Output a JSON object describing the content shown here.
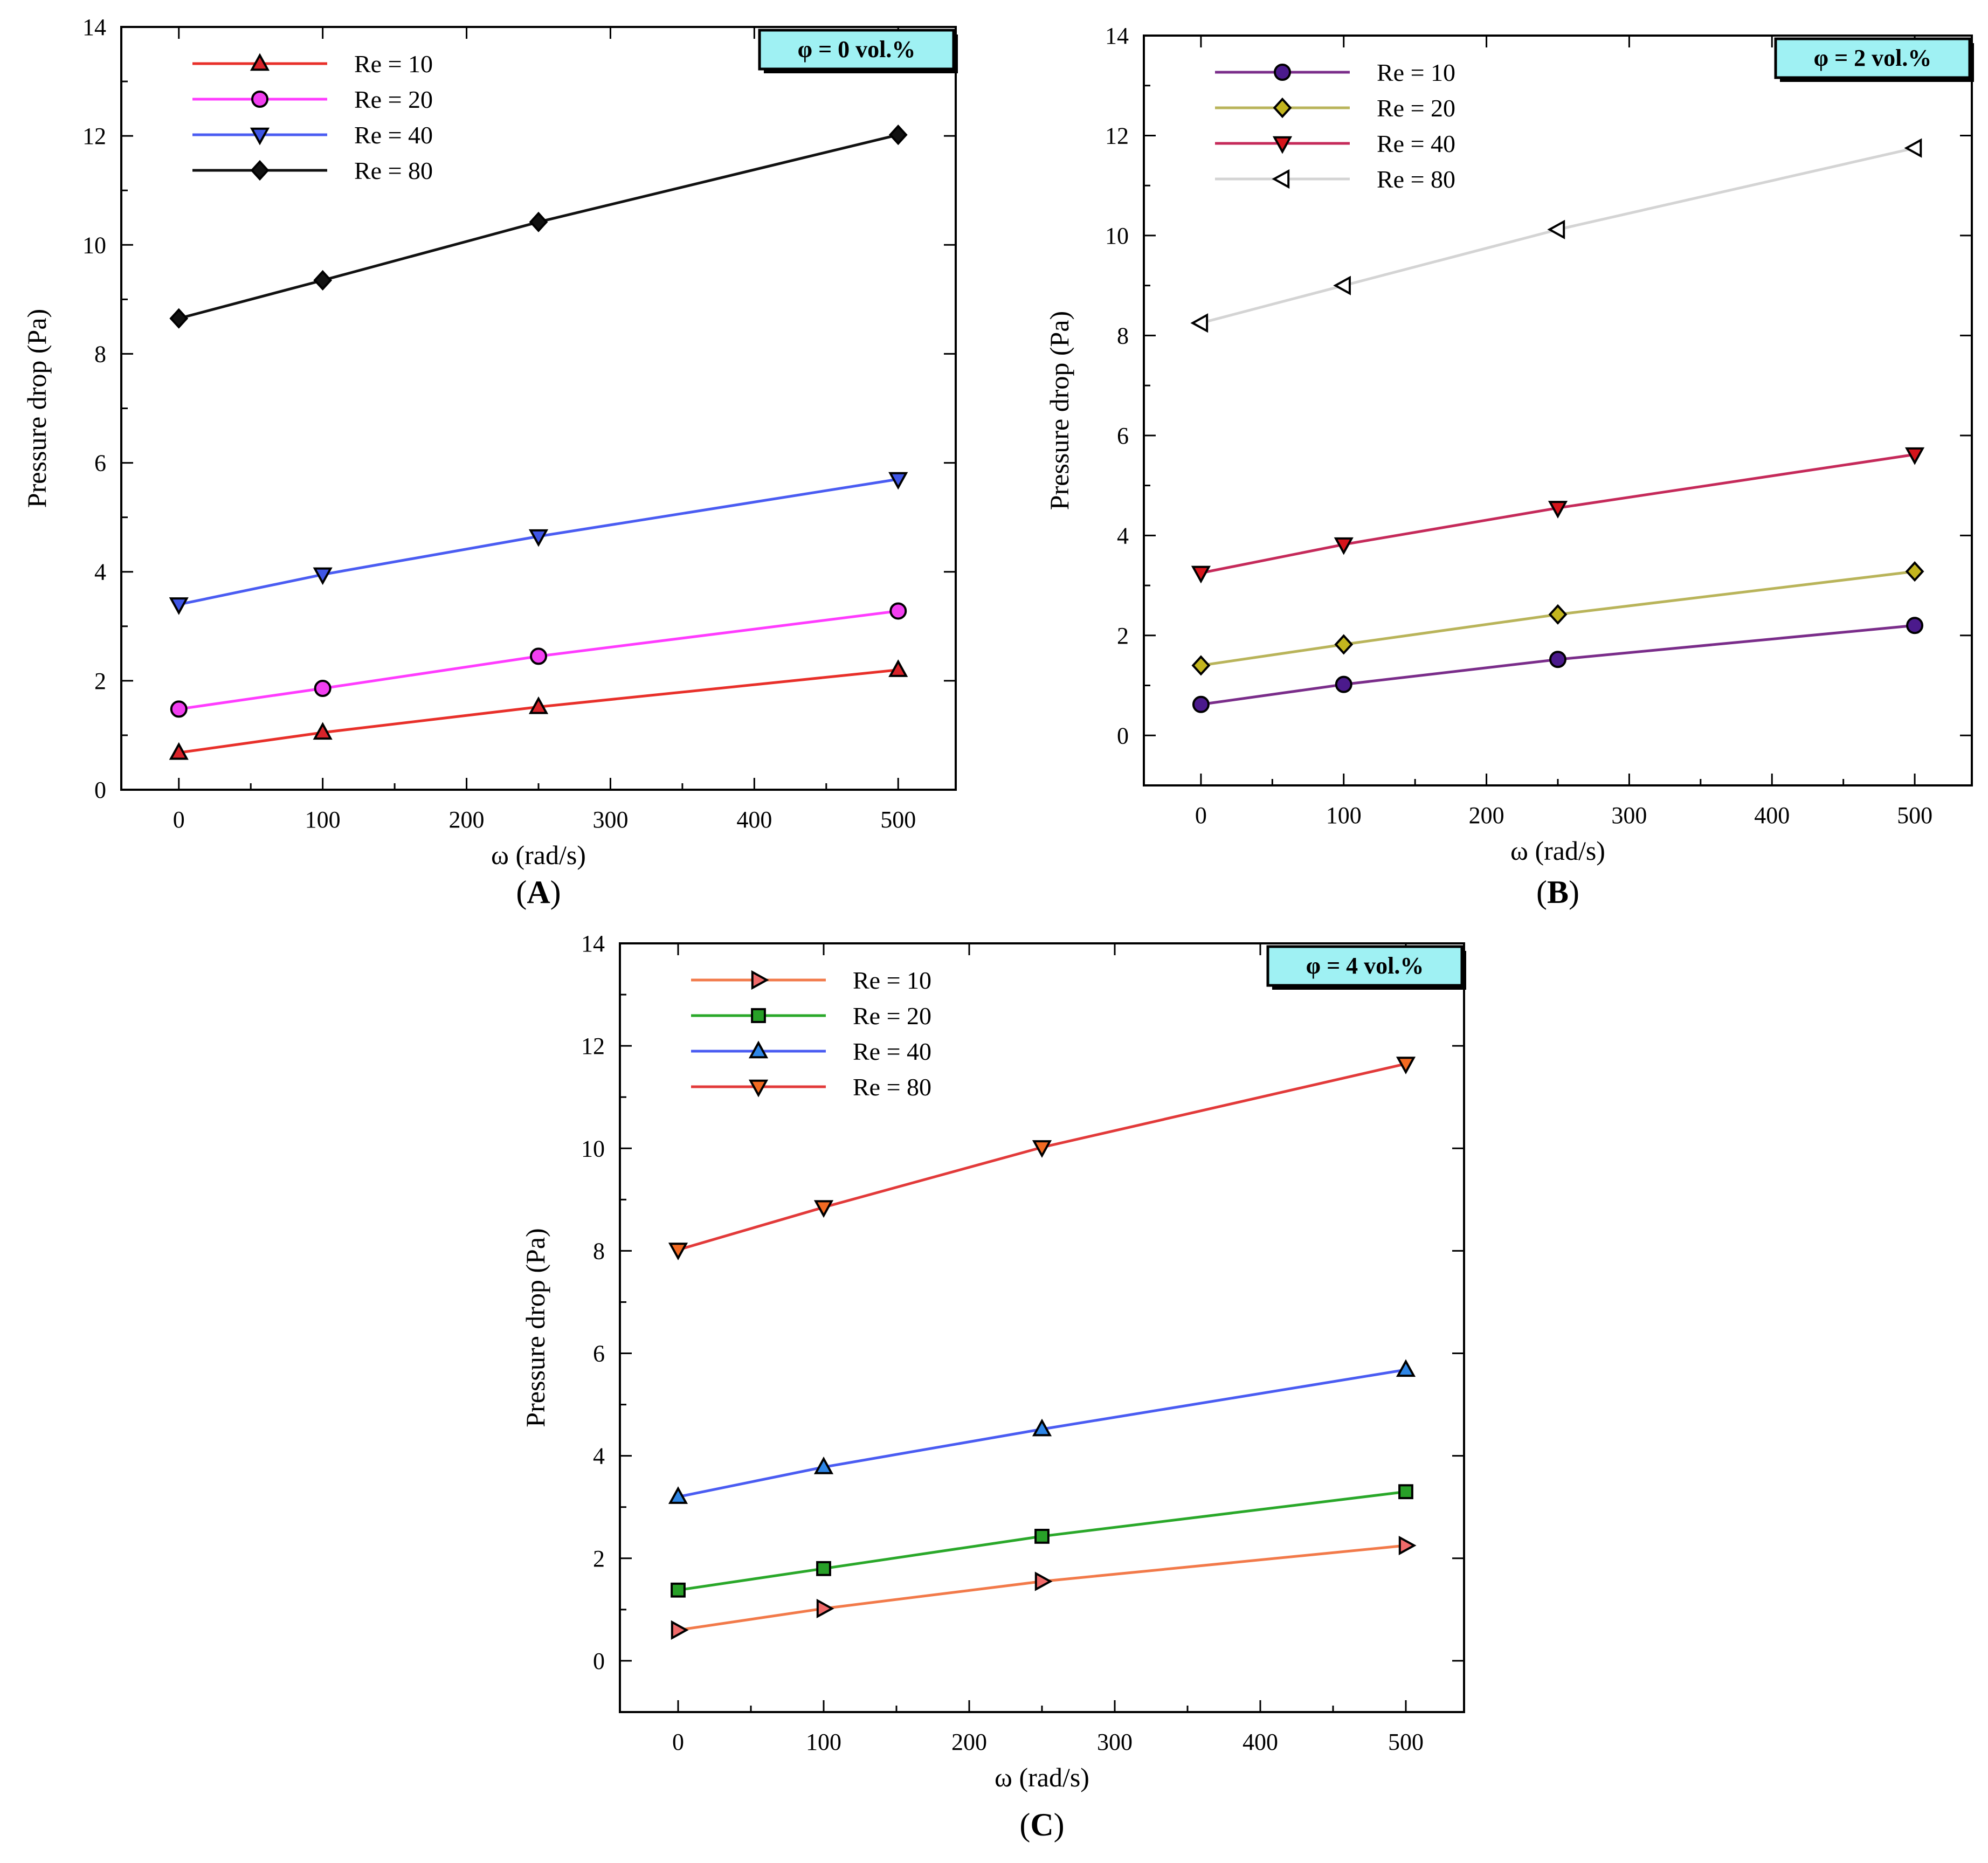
{
  "colors": {
    "background": "#ffffff",
    "badge_fill": "#9ff1f3",
    "axis": "#000000"
  },
  "chart_data": [
    {
      "panel_label": "A",
      "type": "line",
      "title": "",
      "badge": "φ = 0 vol.%",
      "xlabel": "ω (rad/s)",
      "ylabel": "Pressure drop (Pa)",
      "xlim": [
        -40,
        540
      ],
      "ylim": [
        0,
        14
      ],
      "xticks": [
        0,
        100,
        200,
        300,
        400,
        500
      ],
      "yticks": [
        0,
        2,
        4,
        6,
        8,
        10,
        12,
        14
      ],
      "x": [
        0,
        100,
        250,
        500
      ],
      "legend_position": "top-left",
      "series": [
        {
          "name": "Re = 10",
          "values": [
            0.68,
            1.05,
            1.52,
            2.2
          ],
          "color": "#e8302a",
          "marker": "triangle-up",
          "marker_fill": "#d9232a"
        },
        {
          "name": "Re = 20",
          "values": [
            1.48,
            1.86,
            2.45,
            3.28
          ],
          "color": "#ff3cff",
          "marker": "circle",
          "marker_fill": "#f23ff0"
        },
        {
          "name": "Re = 40",
          "values": [
            3.4,
            3.95,
            4.65,
            5.7
          ],
          "color": "#4a5cf2",
          "marker": "triangle-down",
          "marker_fill": "#3f56e6"
        },
        {
          "name": "Re = 80",
          "values": [
            8.65,
            9.35,
            10.42,
            12.02
          ],
          "color": "#111111",
          "marker": "diamond",
          "marker_fill": "#111111"
        }
      ]
    },
    {
      "panel_label": "B",
      "type": "line",
      "title": "",
      "badge": "φ = 2 vol.%",
      "xlabel": "ω (rad/s)",
      "ylabel": "Pressure drop (Pa)",
      "xlim": [
        -40,
        540
      ],
      "ylim": [
        -1,
        14
      ],
      "xticks": [
        0,
        100,
        200,
        300,
        400,
        500
      ],
      "yticks": [
        0,
        2,
        4,
        6,
        8,
        10,
        12,
        14
      ],
      "x": [
        0,
        100,
        250,
        500
      ],
      "legend_position": "top-left",
      "series": [
        {
          "name": "Re = 10",
          "values": [
            0.62,
            1.02,
            1.52,
            2.2
          ],
          "color": "#7a2d8a",
          "marker": "circle",
          "marker_fill": "#4b1a8c"
        },
        {
          "name": "Re = 20",
          "values": [
            1.4,
            1.82,
            2.42,
            3.28
          ],
          "color": "#b9b45a",
          "marker": "diamond",
          "marker_fill": "#c3b51e"
        },
        {
          "name": "Re = 40",
          "values": [
            3.25,
            3.82,
            4.55,
            5.62
          ],
          "color": "#c52a5a",
          "marker": "triangle-down",
          "marker_fill": "#d6141b"
        },
        {
          "name": "Re = 80",
          "values": [
            8.25,
            9.0,
            10.12,
            11.75
          ],
          "color": "#d4d4d4",
          "marker": "triangle-left",
          "marker_fill": "#ffffff"
        }
      ]
    },
    {
      "panel_label": "C",
      "type": "line",
      "title": "",
      "badge": "φ = 4 vol.%",
      "xlabel": "ω (rad/s)",
      "ylabel": "Pressure drop (Pa)",
      "xlim": [
        -40,
        540
      ],
      "ylim": [
        -1,
        14
      ],
      "xticks": [
        0,
        100,
        200,
        300,
        400,
        500
      ],
      "yticks": [
        0,
        2,
        4,
        6,
        8,
        10,
        12,
        14
      ],
      "x": [
        0,
        100,
        250,
        500
      ],
      "legend_position": "top-left",
      "series": [
        {
          "name": "Re = 10",
          "values": [
            0.6,
            1.02,
            1.55,
            2.25
          ],
          "color": "#f27a4a",
          "marker": "triangle-right",
          "marker_fill": "#f06a6a"
        },
        {
          "name": "Re = 20",
          "values": [
            1.38,
            1.8,
            2.43,
            3.3
          ],
          "color": "#2aa82a",
          "marker": "square",
          "marker_fill": "#28a028"
        },
        {
          "name": "Re = 40",
          "values": [
            3.2,
            3.78,
            4.52,
            5.68
          ],
          "color": "#4a5cf2",
          "marker": "triangle-up",
          "marker_fill": "#2e86e6"
        },
        {
          "name": "Re = 80",
          "values": [
            8.02,
            8.85,
            10.02,
            11.65
          ],
          "color": "#e23a3a",
          "marker": "triangle-down",
          "marker_fill": "#f26a22"
        }
      ]
    }
  ]
}
